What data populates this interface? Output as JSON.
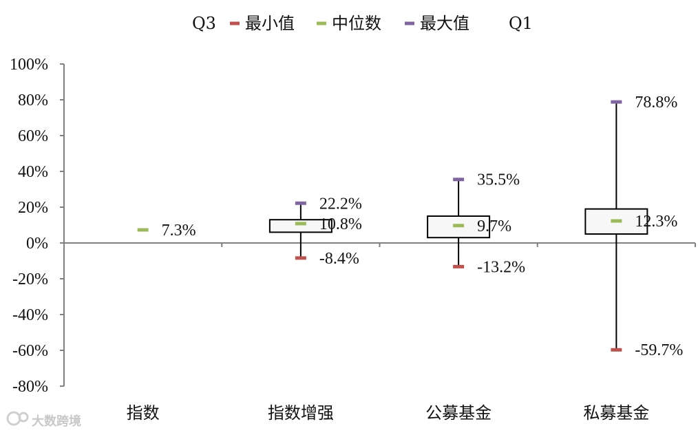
{
  "chart_data": {
    "type": "boxplot",
    "legend": [
      {
        "label": "Q3",
        "color": null
      },
      {
        "label": "最小值",
        "color": "#c0504d"
      },
      {
        "label": "中位数",
        "color": "#9bbb59"
      },
      {
        "label": "最大值",
        "color": "#8064a2"
      },
      {
        "label": "Q1",
        "color": null
      }
    ],
    "legend_position": "top",
    "categories": [
      "指数",
      "指数增强",
      "公募基金",
      "私募基金"
    ],
    "y_ticks": [
      "100%",
      "80%",
      "60%",
      "40%",
      "20%",
      "0%",
      "-20%",
      "-40%",
      "-60%",
      "-80%"
    ],
    "ylim": [
      -80,
      100
    ],
    "y_unit": "%",
    "series": [
      {
        "category": "指数",
        "min": null,
        "q1": null,
        "median": 7.3,
        "q3": null,
        "max": null,
        "labels": {
          "median": "7.3%"
        }
      },
      {
        "category": "指数增强",
        "min": -8.4,
        "q1": 6.0,
        "median": 10.8,
        "q3": 13.0,
        "max": 22.2,
        "labels": {
          "max": "22.2%",
          "median": "10.8%",
          "min": "-8.4%"
        }
      },
      {
        "category": "公募基金",
        "min": -13.2,
        "q1": 3.0,
        "median": 9.7,
        "q3": 15.0,
        "max": 35.5,
        "labels": {
          "max": "35.5%",
          "median": "9.7%",
          "min": "-13.2%"
        }
      },
      {
        "category": "私募基金",
        "min": -59.7,
        "q1": 5.0,
        "median": 12.3,
        "q3": 19.0,
        "max": 78.8,
        "labels": {
          "max": "78.8%",
          "median": "12.3%",
          "min": "-59.7%"
        }
      }
    ],
    "colors": {
      "min": "#c0504d",
      "median": "#9bbb59",
      "max": "#8064a2",
      "axis": "#7f7f7f",
      "box": "#000000",
      "box_fill": "#f7f7f7"
    },
    "grid": false
  },
  "watermark": "大数跨境"
}
